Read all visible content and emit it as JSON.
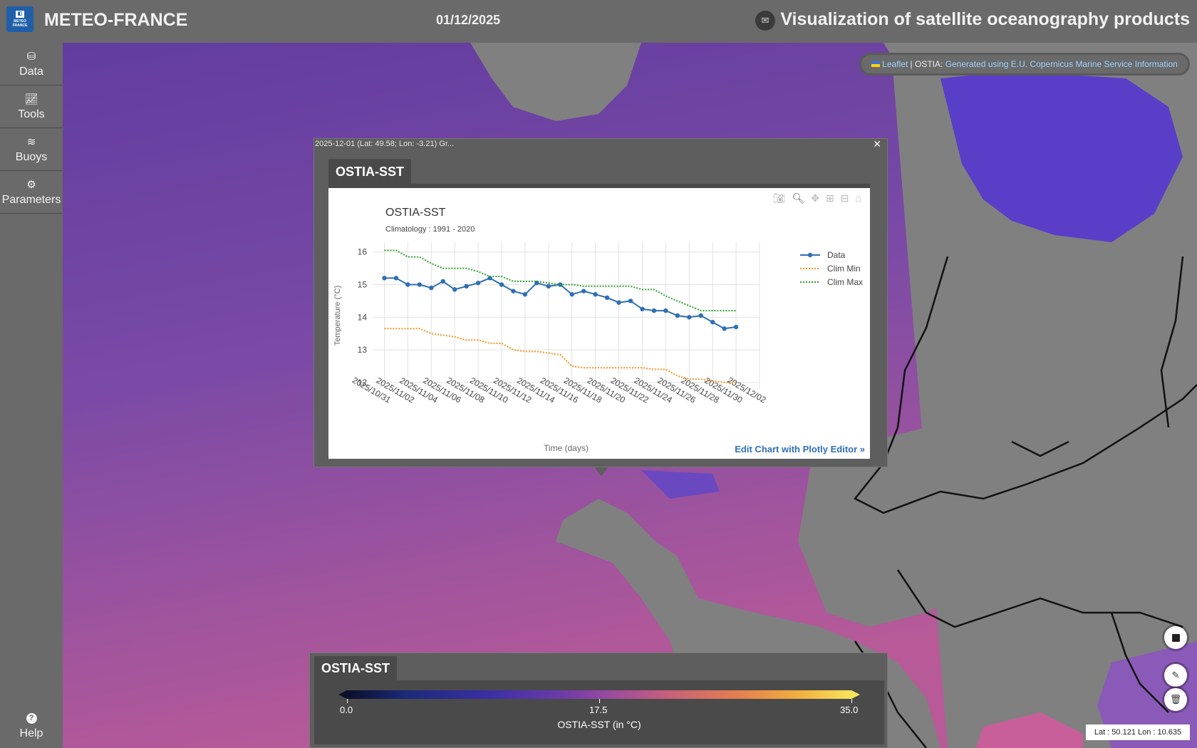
{
  "header": {
    "logo_text": "METEO FRANCE",
    "brand": "METEO-FRANCE",
    "date": "01/12/2025",
    "title": "Visualization of satellite oceanography products"
  },
  "sidebar": {
    "items": [
      {
        "label": "Data",
        "icon": "database-icon"
      },
      {
        "label": "Tools",
        "icon": "line-chart-icon"
      },
      {
        "label": "Buoys",
        "icon": "waves-icon"
      },
      {
        "label": "Parameters",
        "icon": "gear-icon"
      }
    ],
    "help_label": "Help"
  },
  "attribution": {
    "leaflet": "Leaflet",
    "sep": " | OSTIA: ",
    "source": "Generated using E.U. Copernicus Marine Service Information"
  },
  "popup": {
    "title": "2025-12-01 (Lat: 49.58; Lon: -3.21) Gr...",
    "tab": "OSTIA-SST",
    "edit_link": "Edit Chart with Plotly Editor »"
  },
  "chart_data": {
    "type": "line",
    "title": "OSTIA-SST",
    "subtitle": "Climatology : 1991 - 2020",
    "xlabel": "Time (days)",
    "ylabel": "Temperature (°C)",
    "ylim": [
      11.8,
      16.3
    ],
    "xlim": [
      "2025-10-30",
      "2025-12-02"
    ],
    "yticks": [
      12,
      13,
      14,
      15,
      16
    ],
    "xticks": [
      "2025/10/31",
      "2025/11/02",
      "2025/11/04",
      "2025/11/06",
      "2025/11/08",
      "2025/11/10",
      "2025/11/12",
      "2025/11/14",
      "2025/11/16",
      "2025/11/18",
      "2025/11/20",
      "2025/11/22",
      "2025/11/24",
      "2025/11/26",
      "2025/11/28",
      "2025/11/30",
      "2025/12/02"
    ],
    "legend_position": "top-right",
    "grid": true,
    "x": [
      "2025-10-31",
      "2025-11-01",
      "2025-11-02",
      "2025-11-03",
      "2025-11-04",
      "2025-11-05",
      "2025-11-06",
      "2025-11-07",
      "2025-11-08",
      "2025-11-09",
      "2025-11-10",
      "2025-11-11",
      "2025-11-12",
      "2025-11-13",
      "2025-11-14",
      "2025-11-15",
      "2025-11-16",
      "2025-11-17",
      "2025-11-18",
      "2025-11-19",
      "2025-11-20",
      "2025-11-21",
      "2025-11-22",
      "2025-11-23",
      "2025-11-24",
      "2025-11-25",
      "2025-11-26",
      "2025-11-27",
      "2025-11-28",
      "2025-11-29",
      "2025-11-30"
    ],
    "series": [
      {
        "name": "Data",
        "color": "#2f6fb5",
        "style": "solid-markers",
        "values": [
          15.2,
          15.2,
          15.0,
          15.0,
          14.9,
          15.1,
          14.85,
          14.95,
          15.05,
          15.2,
          15.0,
          14.8,
          14.7,
          15.05,
          14.95,
          15.0,
          14.7,
          14.8,
          14.7,
          14.6,
          14.45,
          14.5,
          14.25,
          14.2,
          14.2,
          14.05,
          14.0,
          14.05,
          13.85,
          13.65,
          13.7
        ]
      },
      {
        "name": "Clim Min",
        "color": "#f0951f",
        "style": "dotted",
        "values": [
          13.65,
          13.65,
          13.65,
          13.65,
          13.5,
          13.45,
          13.4,
          13.3,
          13.3,
          13.2,
          13.2,
          13.0,
          12.95,
          12.95,
          12.9,
          12.85,
          12.5,
          12.45,
          12.45,
          12.45,
          12.45,
          12.45,
          12.45,
          12.4,
          12.4,
          12.2,
          12.1,
          12.1,
          12.05,
          12.0,
          12.0
        ]
      },
      {
        "name": "Clim Max",
        "color": "#2ca02c",
        "style": "dotted",
        "values": [
          16.05,
          16.05,
          15.85,
          15.85,
          15.65,
          15.5,
          15.5,
          15.5,
          15.4,
          15.25,
          15.25,
          15.1,
          15.1,
          15.1,
          15.05,
          15.0,
          15.0,
          14.95,
          14.95,
          14.95,
          14.95,
          14.95,
          14.85,
          14.85,
          14.65,
          14.5,
          14.35,
          14.2,
          14.2,
          14.2,
          14.2
        ]
      }
    ]
  },
  "colorbar": {
    "tab": "OSTIA-SST",
    "min_label": "0.0",
    "mid_label": "17.5",
    "max_label": "35.0",
    "title": "OSTIA-SST (in °C)"
  },
  "coords": "Lat : 50.121 Lon : 10.635"
}
